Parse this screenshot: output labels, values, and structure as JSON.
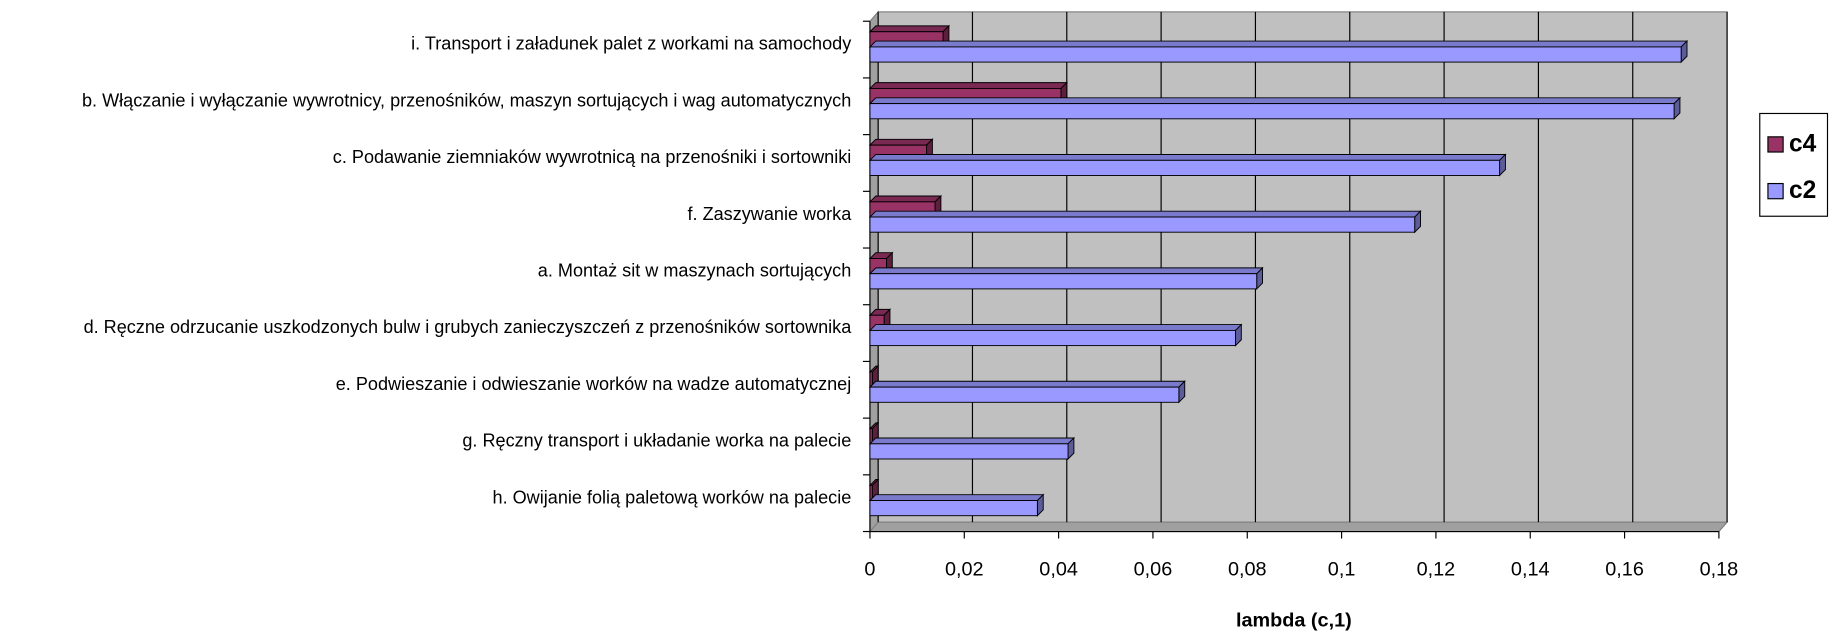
{
  "chart_data": {
    "type": "bar",
    "orientation": "horizontal",
    "categories": [
      "i. Transport i załadunek palet z workami na samochody",
      "b. Włączanie i wyłączanie wywrotnicy, przenośników, maszyn sortujących i wag automatycznych",
      "c. Podawanie ziemniaków wywrotnicą na przenośniki i sortowniki",
      "f. Zaszywanie worka",
      "a. Montaż sit w maszynach sortujących",
      "d. Ręczne odrzucanie uszkodzonych bulw i grubych zanieczyszczeń z przenośników sortownika",
      "e. Podwieszanie i odwieszanie worków na wadze automatycznej",
      "g. Ręczny transport i układanie worka na palecie",
      "h. Owijanie folią paletową worków na palecie"
    ],
    "series": [
      {
        "name": "c4",
        "color": "#993366",
        "values": [
          0.0155,
          0.0405,
          0.012,
          0.0138,
          0.0035,
          0.003,
          0.0005,
          0.0005,
          0.0005
        ]
      },
      {
        "name": "c2",
        "color": "#9999ff",
        "values": [
          0.172,
          0.1705,
          0.1335,
          0.1155,
          0.082,
          0.0775,
          0.0655,
          0.042,
          0.0355
        ]
      }
    ],
    "xlabel": "lambda (c,1)",
    "xlim": [
      0,
      0.18
    ],
    "xticks": [
      0,
      {
        "value": 0.02,
        "label": "0,02"
      },
      {
        "value": 0.04,
        "label": "0,04"
      },
      {
        "value": 0.06,
        "label": "0,06"
      },
      {
        "value": 0.08,
        "label": "0,08"
      },
      {
        "value": 0.1,
        "label": "0,1"
      },
      {
        "value": 0.12,
        "label": "0,12"
      },
      {
        "value": 0.14,
        "label": "0,14"
      },
      {
        "value": 0.16,
        "label": "0,16"
      },
      {
        "value": 0.18,
        "label": "0,18"
      }
    ],
    "grid": true,
    "legend": "right"
  }
}
